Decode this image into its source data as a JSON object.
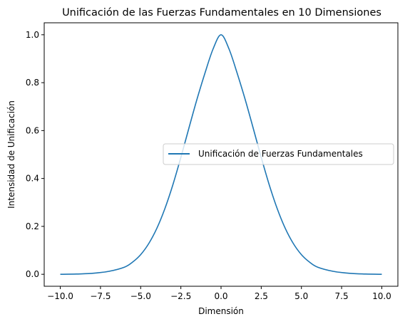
{
  "chart_data": {
    "type": "line",
    "title": "Unificación de las Fuerzas Fundamentales en 10 Dimensiones",
    "xlabel": "Dimensión",
    "ylabel": "Intensidad de Unificación",
    "xlim": [
      -11.0,
      11.0
    ],
    "ylim": [
      -0.05,
      1.05
    ],
    "xticks": [
      -10.0,
      -7.5,
      -5.0,
      -2.5,
      0.0,
      2.5,
      5.0,
      7.5,
      10.0
    ],
    "xtick_labels": [
      "−10.0",
      "−7.5",
      "−5.0",
      "−2.5",
      "0.0",
      "2.5",
      "5.0",
      "7.5",
      "10.0"
    ],
    "yticks": [
      0.0,
      0.2,
      0.4,
      0.6,
      0.8,
      1.0
    ],
    "ytick_labels": [
      "0.0",
      "0.2",
      "0.4",
      "0.6",
      "0.8",
      "1.0"
    ],
    "grid": false,
    "legend_position": "center-right",
    "series": [
      {
        "name": "Unificación de Fuerzas Fundamentales",
        "color": "#1f77b4",
        "x": [
          -10.0,
          -9.0,
          -8.0,
          -7.0,
          -6.0,
          -5.5,
          -5.0,
          -4.5,
          -4.0,
          -3.5,
          -3.0,
          -2.5,
          -2.0,
          -1.5,
          -1.0,
          -0.5,
          0.0,
          0.5,
          1.0,
          1.5,
          2.0,
          2.5,
          3.0,
          3.5,
          4.0,
          4.5,
          5.0,
          5.5,
          6.0,
          7.0,
          8.0,
          9.0,
          10.0
        ],
        "y": [
          0.0,
          0.001,
          0.004,
          0.012,
          0.03,
          0.051,
          0.082,
          0.128,
          0.191,
          0.273,
          0.373,
          0.488,
          0.61,
          0.73,
          0.84,
          0.94,
          1.0,
          0.94,
          0.84,
          0.73,
          0.61,
          0.488,
          0.373,
          0.273,
          0.191,
          0.128,
          0.082,
          0.051,
          0.03,
          0.012,
          0.004,
          0.001,
          0.0
        ]
      }
    ]
  }
}
